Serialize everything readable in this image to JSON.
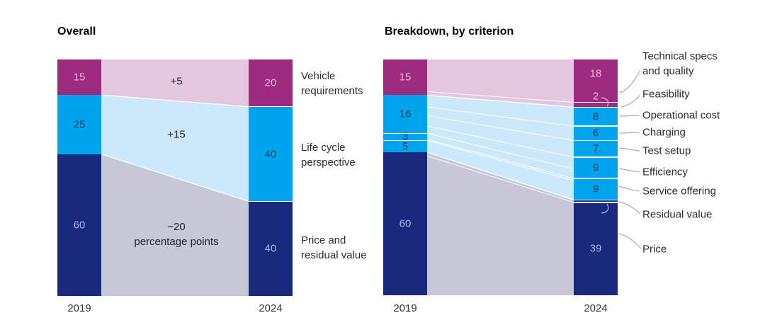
{
  "page": {
    "background": "#FFFFFF"
  },
  "palette": {
    "magenta": {
      "bar": "#9D2B80",
      "flow": "#E4C6DE",
      "text": "#F4B0DD"
    },
    "blue": {
      "bar": "#00A4EC",
      "flow": "#CBE9FA",
      "text": "#1C3E62"
    },
    "navy": {
      "bar": "#192A7D",
      "flow": "#C6C8D7",
      "text": "#A9B4E4"
    }
  },
  "chart_data": [
    {
      "type": "area",
      "variant": "stacked-bar-flow",
      "title": "Overall",
      "x": [
        "2019",
        "2024"
      ],
      "series": [
        {
          "name": "Vehicle requirements",
          "color_key": "magenta",
          "values": [
            15,
            20
          ],
          "change_label": "+5",
          "change_sublabel": ""
        },
        {
          "name": "Life cycle perspective",
          "color_key": "blue",
          "values": [
            25,
            40
          ],
          "change_label": "+15",
          "change_sublabel": ""
        },
        {
          "name": "Price and residual value",
          "color_key": "navy",
          "values": [
            60,
            40
          ],
          "change_label": "−20",
          "change_sublabel": "percentage points"
        }
      ]
    },
    {
      "type": "area",
      "variant": "stacked-bar-flow",
      "title": "Breakdown, by criterion",
      "x": [
        "2019",
        "2024"
      ],
      "groups": [
        {
          "color_key": "magenta",
          "left_values": [
            15
          ],
          "right": [
            {
              "label": "Technical specs and quality",
              "value": 18
            },
            {
              "label": "Feasibility",
              "value": 2
            }
          ]
        },
        {
          "color_key": "blue",
          "left_values": [
            16,
            3,
            5
          ],
          "right": [
            {
              "label": "Operational cost",
              "value": 8
            },
            {
              "label": "Charging",
              "value": 6
            },
            {
              "label": "Test setup",
              "value": 7
            },
            {
              "label": "Efficiency",
              "value": 9
            },
            {
              "label": "Service offering",
              "value": 9
            }
          ]
        },
        {
          "color_key": "navy",
          "left_values": [
            60
          ],
          "right": [
            {
              "label": "Residual value",
              "value": 1
            },
            {
              "label": "Price",
              "value": 39
            }
          ]
        }
      ]
    }
  ]
}
